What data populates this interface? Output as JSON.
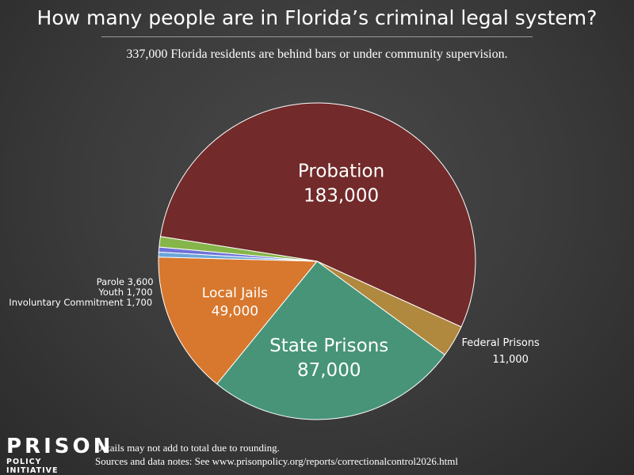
{
  "title": "How many people are in Florida’s criminal legal system?",
  "subtitle": "337,000 Florida residents are behind bars or under community supervision.",
  "chart_data": {
    "type": "pie",
    "slices": [
      {
        "name": "Probation",
        "value": 183000,
        "value_label": "183,000",
        "color": "#722a2a",
        "label_style": "inside-large"
      },
      {
        "name": "Federal Prisons",
        "value": 11000,
        "value_label": "11,000",
        "color": "#b0883e",
        "label_style": "outside-right"
      },
      {
        "name": "State Prisons",
        "value": 87000,
        "value_label": "87,000",
        "color": "#479478",
        "label_style": "inside-large"
      },
      {
        "name": "Local Jails",
        "value": 49000,
        "value_label": "49,000",
        "color": "#d7782e",
        "label_style": "inside-medium"
      },
      {
        "name": "Involuntary Commitment",
        "value": 1700,
        "value_label": "1,700",
        "color": "#6aa6d9",
        "label_style": "outside-left"
      },
      {
        "name": "Youth",
        "value": 1700,
        "value_label": "1,700",
        "color": "#6f72d9",
        "label_style": "outside-left"
      },
      {
        "name": "Parole",
        "value": 3600,
        "value_label": "3,600",
        "color": "#86b54a",
        "label_style": "outside-left"
      }
    ]
  },
  "logo": {
    "line1": "PRISON",
    "line2": "POLICY INITIATIVE"
  },
  "notes": {
    "line1": "Details may not add to total due to rounding.",
    "line2": "Sources and data notes: See www.prisonpolicy.org/reports/correctionalcontrol2026.html"
  }
}
